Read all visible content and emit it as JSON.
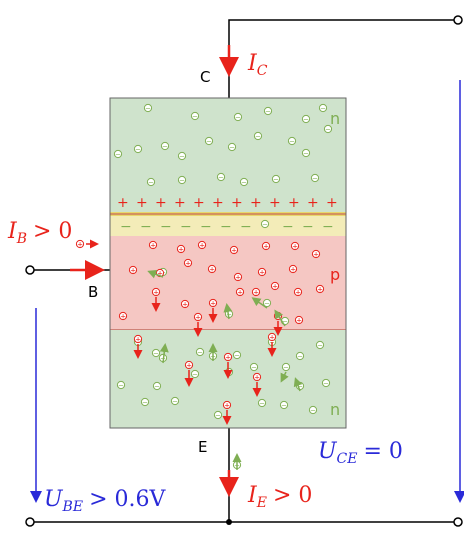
{
  "labels": {
    "collector_terminal": "C",
    "base_terminal": "B",
    "emitter_terminal": "E",
    "collector_current": "I",
    "collector_current_sub": "C",
    "base_current": "I",
    "base_current_sub": "B",
    "base_current_cond": "> 0",
    "emitter_current": "I",
    "emitter_current_sub": "E",
    "emitter_current_cond": "> 0",
    "u_ce": "U",
    "u_ce_sub": "CE",
    "u_ce_cond": "= 0",
    "u_be": "U",
    "u_be_sub": "BE",
    "u_be_cond": "> 0.6V",
    "region_top": "n",
    "region_mid": "p",
    "region_bottom": "n"
  },
  "colors": {
    "n_region": "#cfe3cc",
    "p_region": "#f5c7c3",
    "depletion": "#f3ecb8",
    "current_arrow": "#e8231b",
    "voltage_arrow": "#2a2ad8",
    "electron_symbol": "#7fae53",
    "hole_symbol": "#e8231b",
    "wire": "#000000"
  },
  "symbols": {
    "electron": "−",
    "hole": "+",
    "positive_ion": "+",
    "negative_ion": "−"
  }
}
